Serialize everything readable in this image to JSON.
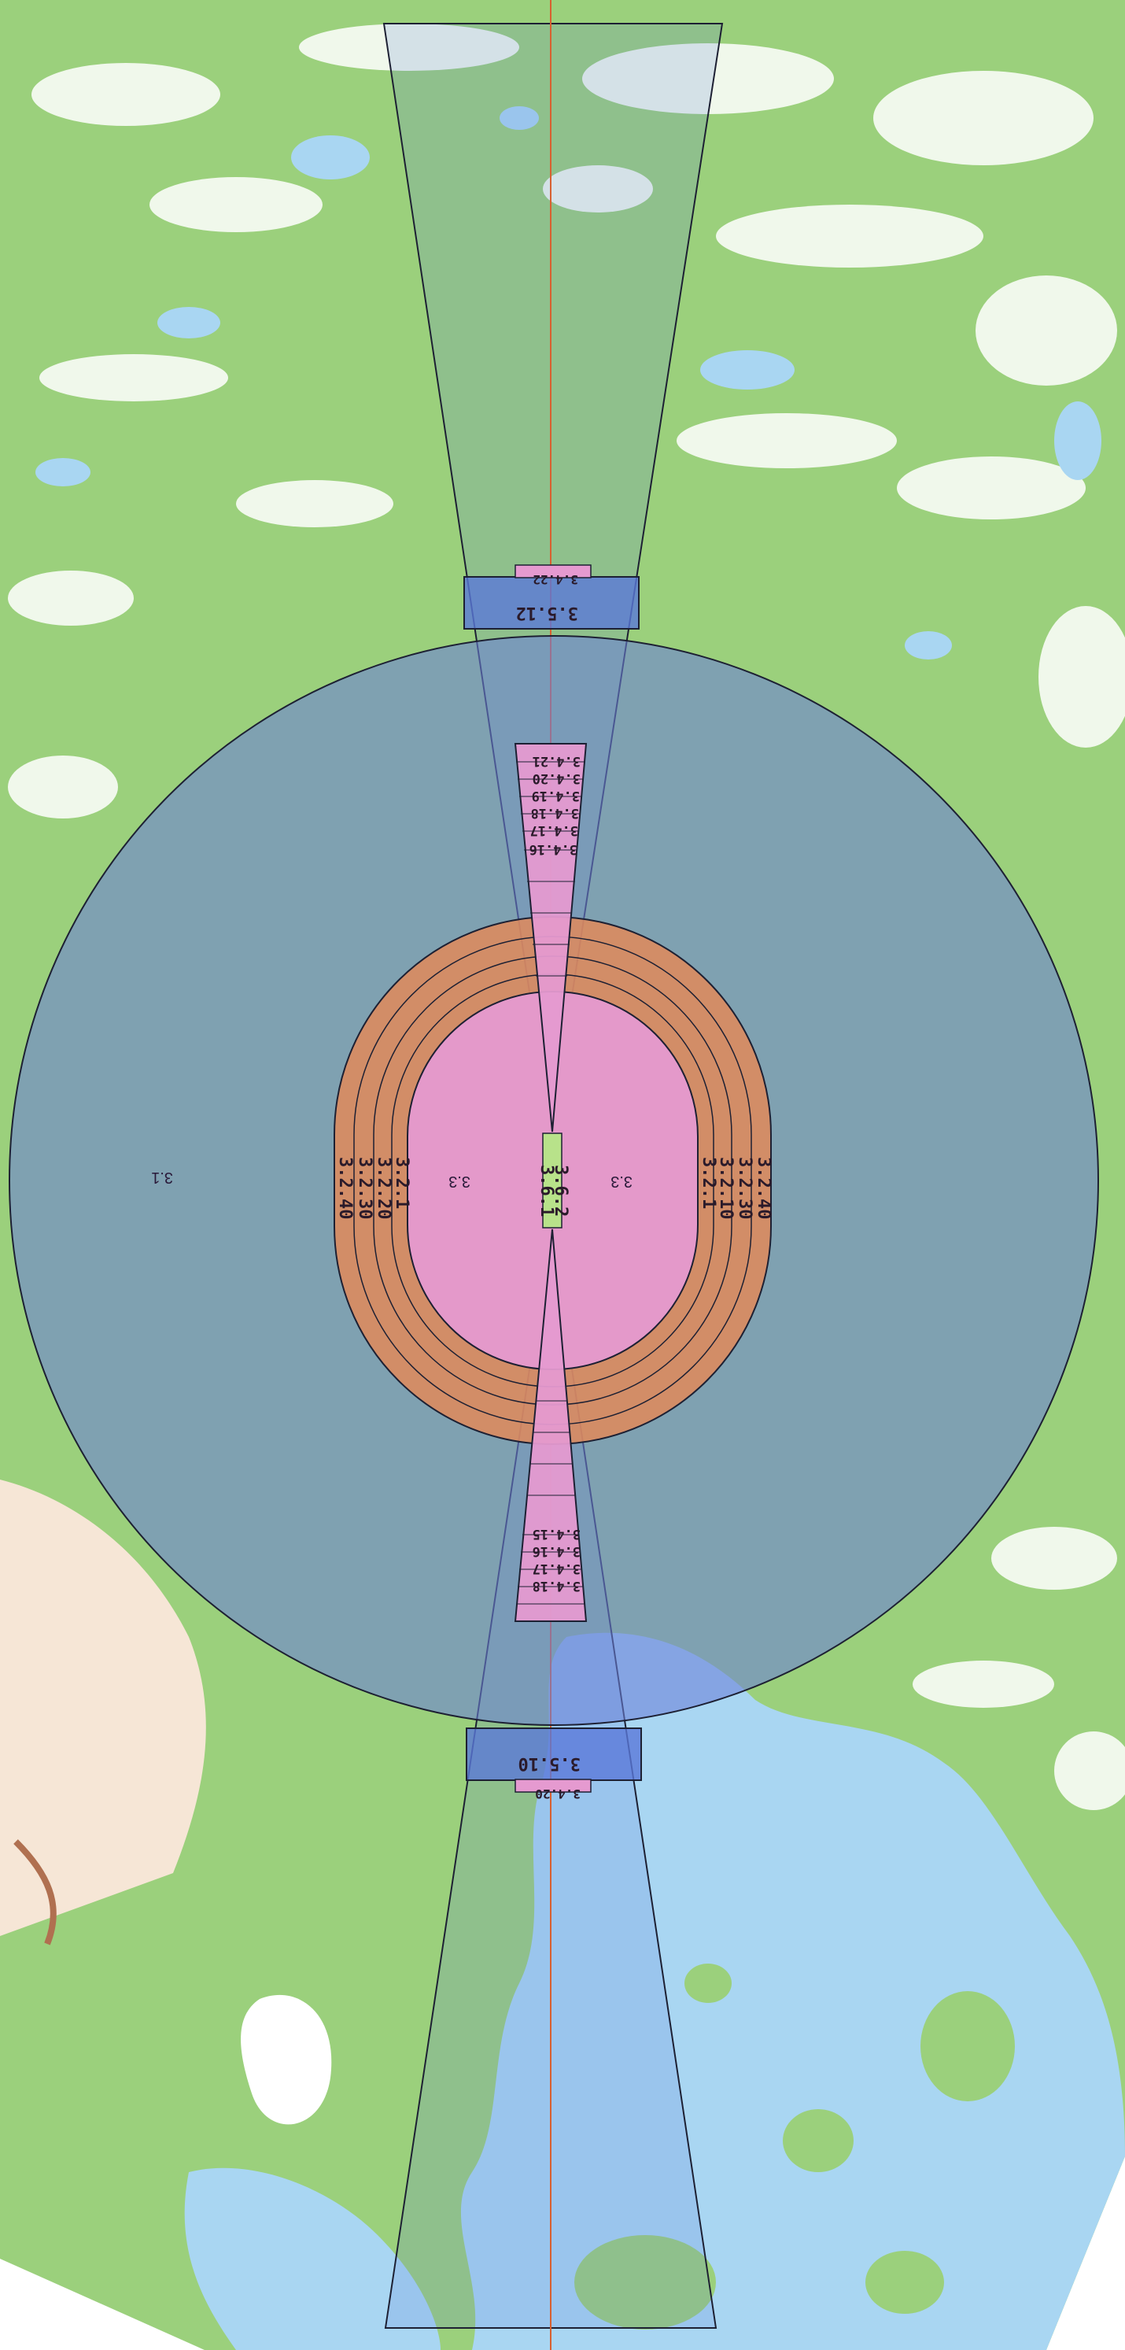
{
  "map": {
    "colors": {
      "forest": "#9bd07c",
      "open_land": "#ffffff",
      "water": "#a9d6f2",
      "outer_circle": "#6a7fd8",
      "runway_rings": "#e08a5a",
      "inner_zone": "#e59ad0",
      "approach_band": "#5a78d8",
      "centerline": "#d86030",
      "outline": "#1d2033"
    },
    "zones": {
      "outer_circle": "3.1",
      "inner_left": "3.3",
      "inner_right": "3.3",
      "runway_a": "3.6.1",
      "runway_b": "3.6.2",
      "left_rings": [
        "3.2.40",
        "3.2.30",
        "3.2.20",
        "3.2.1"
      ],
      "right_rings": [
        "3.2.1",
        "3.2.10",
        "3.2.30",
        "3.2.40"
      ],
      "north_band": "3.5.12",
      "north_band_top": "3.4.22",
      "south_band": "3.5.10",
      "south_band_bottom": "3.4.20",
      "north_stack": [
        "3.4.21",
        "3.4.20",
        "3.4.19",
        "3.4.18",
        "3.4.17",
        "3.4.16"
      ],
      "south_stack": [
        "3.4.15",
        "3.4.16",
        "3.4.17",
        "3.4.18"
      ]
    }
  }
}
